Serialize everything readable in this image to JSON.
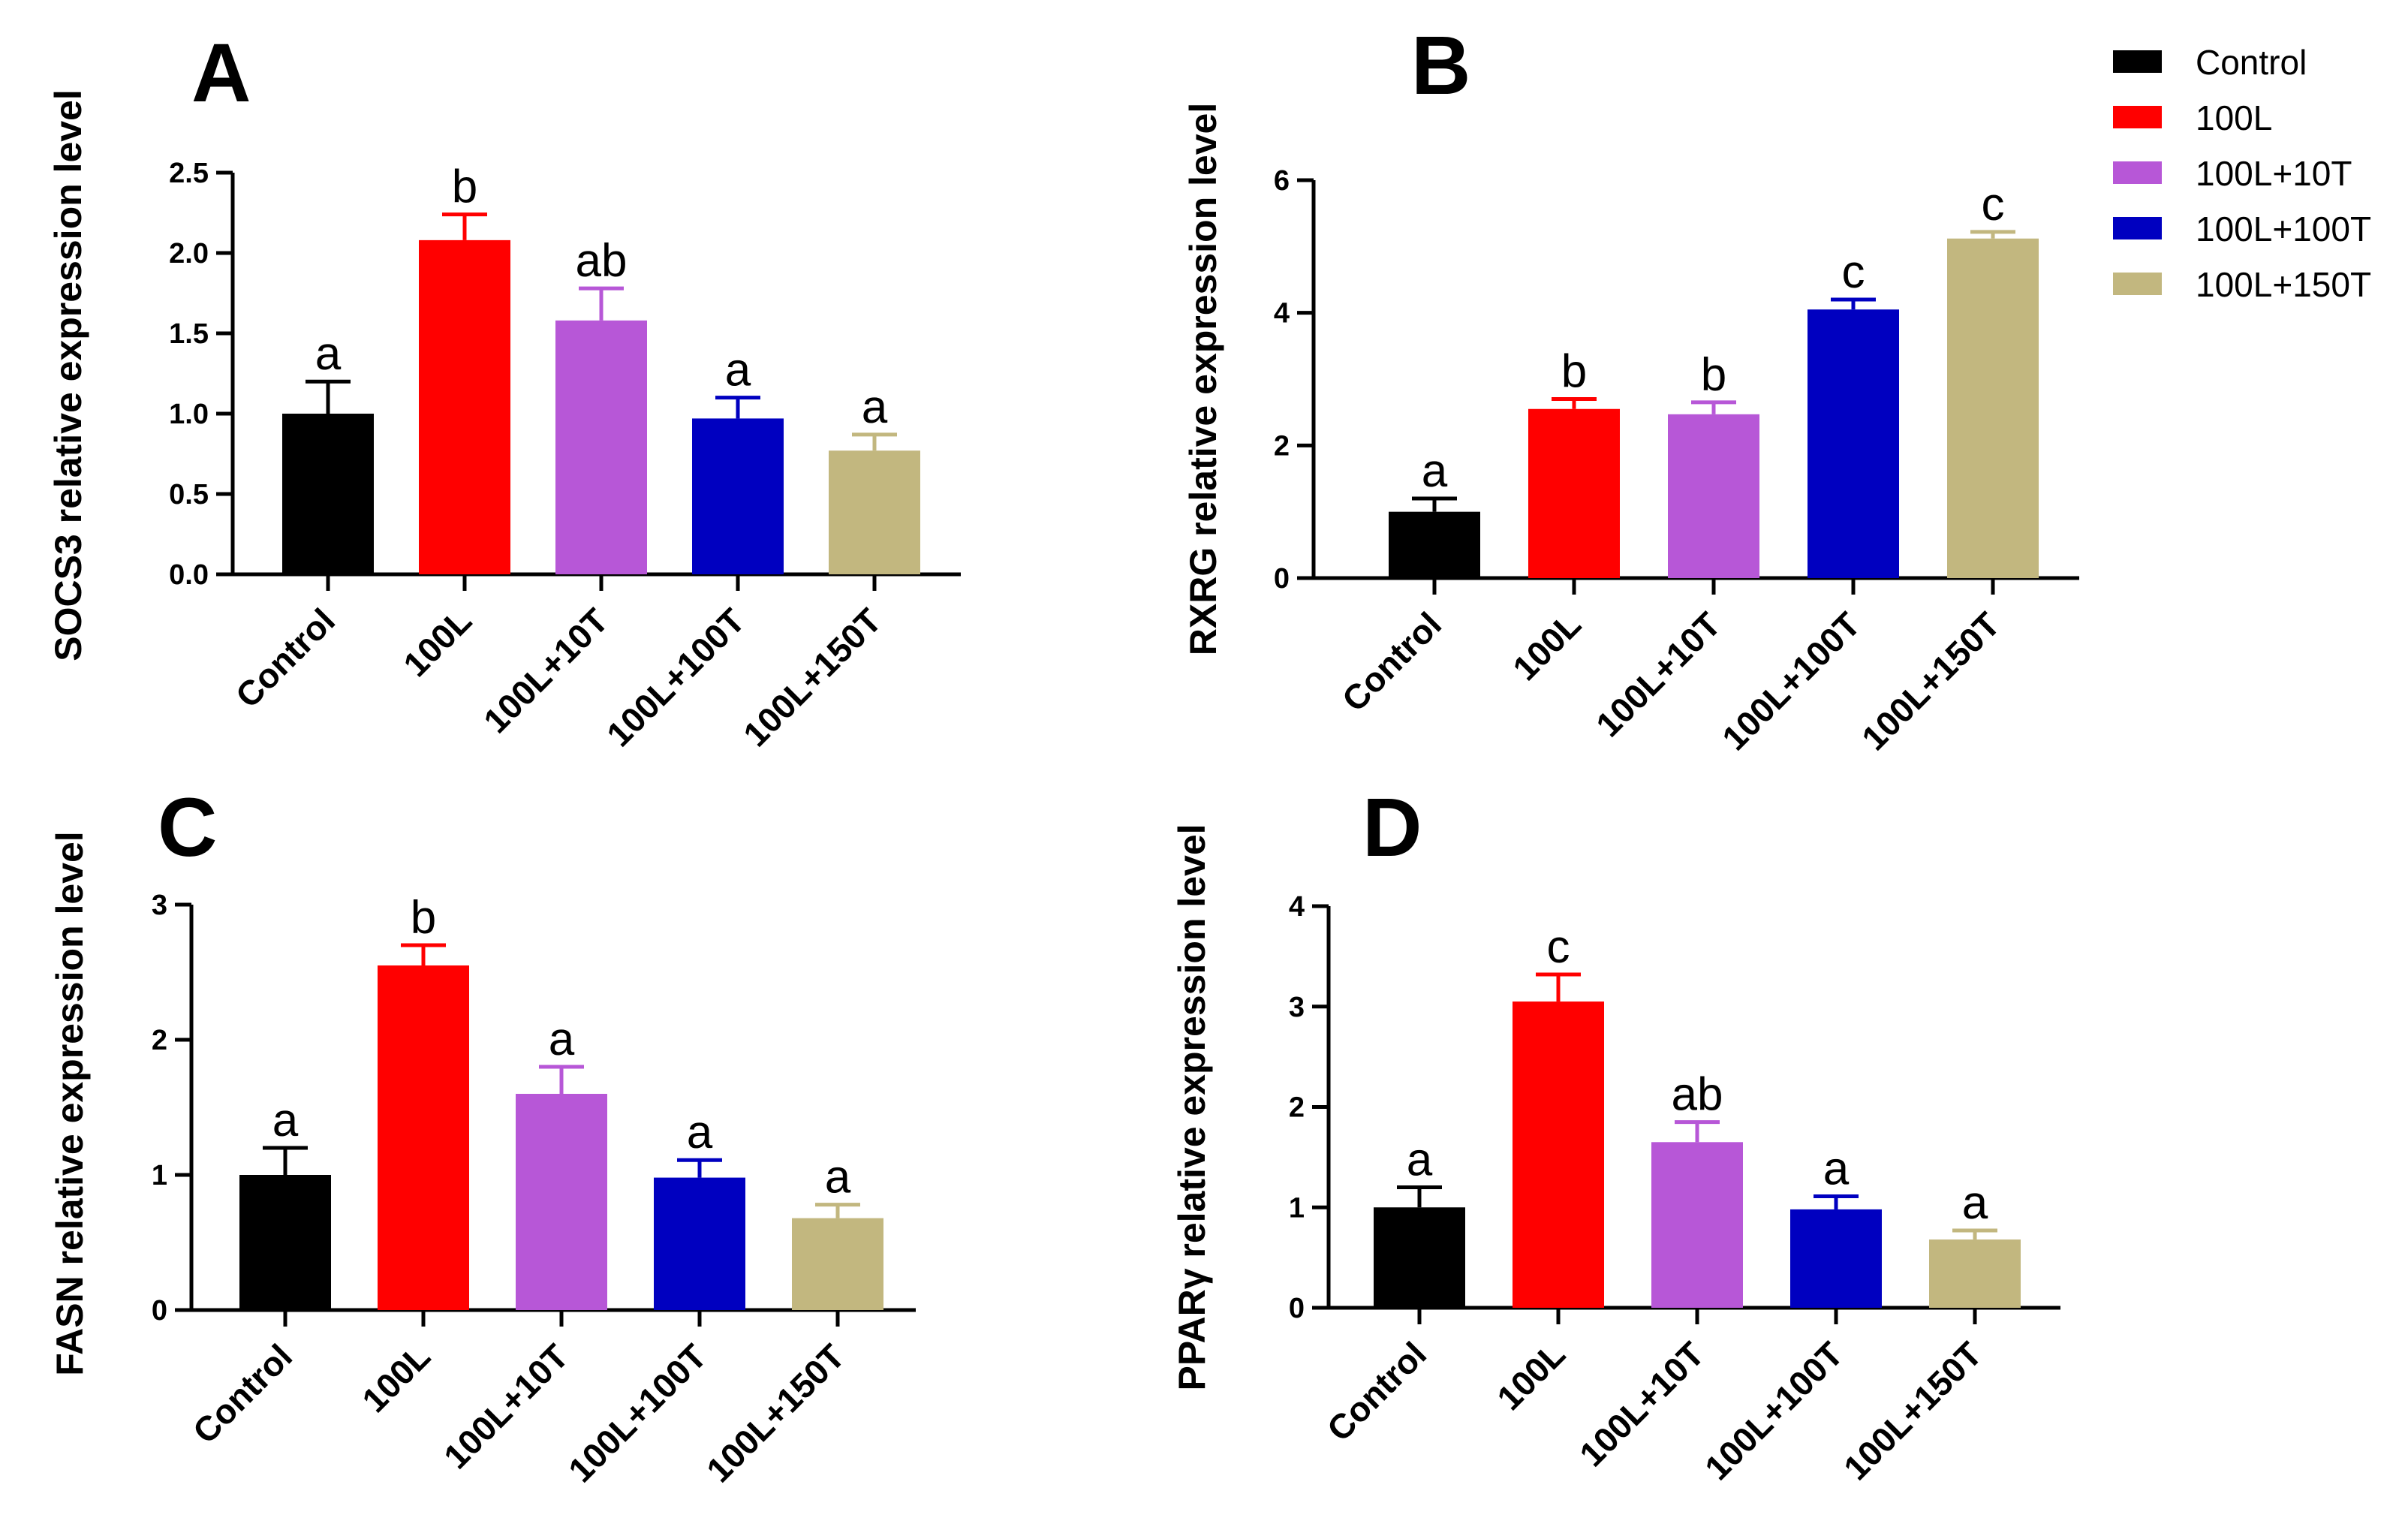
{
  "legend": [
    {
      "label": "Control",
      "color": "#000000"
    },
    {
      "label": "100L",
      "color": "#FF0000"
    },
    {
      "label": "100L+10T",
      "color": "#B757D7"
    },
    {
      "label": "100L+100T",
      "color": "#0000C0"
    },
    {
      "label": "100L+150T",
      "color": "#C2B77F"
    }
  ],
  "chart_data": [
    {
      "type": "bar",
      "panel_label": "A",
      "categories": [
        "Control",
        "100L",
        "100L+10T",
        "100L+100T",
        "100L+150T"
      ],
      "values": [
        1.0,
        2.08,
        1.58,
        0.97,
        0.77
      ],
      "errors": [
        0.2,
        0.16,
        0.2,
        0.13,
        0.1
      ],
      "significance": [
        "a",
        "b",
        "ab",
        "a",
        "a"
      ],
      "colors": [
        "#000000",
        "#FF0000",
        "#B757D7",
        "#0000C0",
        "#C2B77F"
      ],
      "ylabel": "SOCS3 relative expression level",
      "ylim": [
        0,
        2.5
      ],
      "yticks": [
        "0.0",
        "0.5",
        "1.0",
        "1.5",
        "2.0",
        "2.5"
      ],
      "grid": false
    },
    {
      "type": "bar",
      "panel_label": "B",
      "categories": [
        "Control",
        "100L",
        "100L+10T",
        "100L+100T",
        "100L+150T"
      ],
      "values": [
        1.0,
        2.55,
        2.47,
        4.05,
        5.12
      ],
      "errors": [
        0.2,
        0.15,
        0.18,
        0.15,
        0.1
      ],
      "significance": [
        "a",
        "b",
        "b",
        "c",
        "c"
      ],
      "colors": [
        "#000000",
        "#FF0000",
        "#B757D7",
        "#0000C0",
        "#C2B77F"
      ],
      "ylabel": "RXRG  relative expression level",
      "ylim": [
        0,
        6
      ],
      "yticks": [
        "0",
        "2",
        "4",
        "6"
      ],
      "grid": false
    },
    {
      "type": "bar",
      "panel_label": "C",
      "categories": [
        "Control",
        "100L",
        "100L+10T",
        "100L+100T",
        "100L+150T"
      ],
      "values": [
        1.0,
        2.55,
        1.6,
        0.98,
        0.68
      ],
      "errors": [
        0.2,
        0.15,
        0.2,
        0.13,
        0.1
      ],
      "significance": [
        "a",
        "b",
        "a",
        "a",
        "a"
      ],
      "colors": [
        "#000000",
        "#FF0000",
        "#B757D7",
        "#0000C0",
        "#C2B77F"
      ],
      "ylabel": "FASN relative expression level",
      "ylim": [
        0,
        3
      ],
      "yticks": [
        "0",
        "1",
        "2",
        "3"
      ],
      "grid": false
    },
    {
      "type": "bar",
      "panel_label": "D",
      "categories": [
        "Control",
        "100L",
        "100L+10T",
        "100L+100T",
        "100L+150T"
      ],
      "values": [
        1.0,
        3.05,
        1.65,
        0.98,
        0.68
      ],
      "errors": [
        0.2,
        0.27,
        0.2,
        0.13,
        0.09
      ],
      "significance": [
        "a",
        "c",
        "ab",
        "a",
        "a"
      ],
      "colors": [
        "#000000",
        "#FF0000",
        "#B757D7",
        "#0000C0",
        "#C2B77F"
      ],
      "ylabel": "PPARγ relative expression level",
      "ylim": [
        0,
        4
      ],
      "yticks": [
        "0",
        "1",
        "2",
        "3",
        "4"
      ],
      "grid": false
    }
  ]
}
